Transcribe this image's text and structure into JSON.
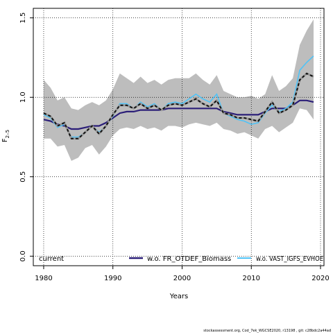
{
  "chart_data": {
    "type": "line",
    "xlabel": "Years",
    "ylabel_main": "F",
    "ylabel_sub": "2–5",
    "xlim": [
      1978.5,
      2020.5
    ],
    "ylim": [
      -0.06,
      1.56
    ],
    "x_ticks": [
      1980,
      1990,
      2000,
      2010,
      2020
    ],
    "y_ticks": [
      0.0,
      0.5,
      1.0,
      1.5
    ],
    "y_tick_labels": [
      "0.0",
      "0.5",
      "1.0",
      "1.5"
    ],
    "grid": true,
    "legend_position": "bottom",
    "footer": "stockassessment.org,  Cod_7ek_WGCSE2020, r13198  ,  git:  c28bdc2a44ad",
    "x": [
      1980,
      1981,
      1982,
      1983,
      1984,
      1985,
      1986,
      1987,
      1988,
      1989,
      1990,
      1991,
      1992,
      1993,
      1994,
      1995,
      1996,
      1997,
      1998,
      1999,
      2000,
      2001,
      2002,
      2003,
      2004,
      2005,
      2006,
      2007,
      2008,
      2009,
      2010,
      2011,
      2012,
      2013,
      2014,
      2015,
      2016,
      2017,
      2018,
      2019
    ],
    "band": {
      "upper": [
        1.11,
        1.06,
        0.98,
        1.0,
        0.93,
        0.92,
        0.95,
        0.97,
        0.95,
        0.98,
        1.05,
        1.15,
        1.12,
        1.09,
        1.13,
        1.09,
        1.11,
        1.08,
        1.11,
        1.12,
        1.12,
        1.12,
        1.15,
        1.11,
        1.08,
        1.14,
        1.04,
        1.02,
        1.0,
        1.0,
        1.01,
        0.99,
        1.02,
        1.14,
        1.04,
        1.07,
        1.12,
        1.33,
        1.42,
        1.49
      ],
      "lower": [
        0.74,
        0.74,
        0.69,
        0.7,
        0.6,
        0.62,
        0.68,
        0.7,
        0.64,
        0.69,
        0.76,
        0.8,
        0.81,
        0.8,
        0.82,
        0.8,
        0.81,
        0.79,
        0.82,
        0.82,
        0.81,
        0.83,
        0.84,
        0.83,
        0.82,
        0.84,
        0.8,
        0.79,
        0.77,
        0.78,
        0.76,
        0.74,
        0.8,
        0.82,
        0.78,
        0.81,
        0.84,
        0.93,
        0.92,
        0.86
      ]
    },
    "series": [
      {
        "name": "current",
        "color": "#111111",
        "style": "dashed-on-grey",
        "values": [
          0.9,
          0.88,
          0.82,
          0.84,
          0.74,
          0.74,
          0.78,
          0.82,
          0.77,
          0.82,
          0.89,
          0.95,
          0.95,
          0.93,
          0.96,
          0.93,
          0.95,
          0.92,
          0.95,
          0.96,
          0.95,
          0.97,
          0.99,
          0.96,
          0.94,
          0.98,
          0.9,
          0.89,
          0.87,
          0.87,
          0.86,
          0.85,
          0.91,
          0.97,
          0.9,
          0.92,
          0.95,
          1.11,
          1.15,
          1.13
        ]
      },
      {
        "name": "w.o. FR_OTDEF_Biomass",
        "color": "#2b1e78",
        "style": "solid",
        "values": [
          0.86,
          0.85,
          0.83,
          0.82,
          0.8,
          0.8,
          0.81,
          0.82,
          0.82,
          0.84,
          0.87,
          0.9,
          0.91,
          0.91,
          0.92,
          0.92,
          0.92,
          0.92,
          0.93,
          0.93,
          0.93,
          0.93,
          0.93,
          0.93,
          0.93,
          0.93,
          0.91,
          0.9,
          0.89,
          0.89,
          0.89,
          0.89,
          0.91,
          0.93,
          0.93,
          0.93,
          0.95,
          0.98,
          0.98,
          0.97
        ]
      },
      {
        "name": "w.o. VAST_IGFS_EVHOE",
        "color": "#4fc3f7",
        "style": "solid",
        "values": [
          0.89,
          0.87,
          0.81,
          0.83,
          0.75,
          0.75,
          0.78,
          0.82,
          0.78,
          0.82,
          0.88,
          0.96,
          0.96,
          0.93,
          0.97,
          0.94,
          0.96,
          0.92,
          0.96,
          0.97,
          0.96,
          0.99,
          1.02,
          0.99,
          0.97,
          1.02,
          0.9,
          0.88,
          0.86,
          0.85,
          0.83,
          0.84,
          0.9,
          0.95,
          0.91,
          0.93,
          0.97,
          1.17,
          1.22,
          1.26
        ]
      }
    ]
  }
}
